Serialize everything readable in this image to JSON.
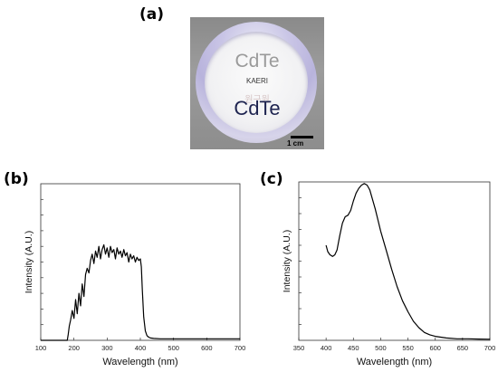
{
  "panels": {
    "a": {
      "label": "(a)",
      "photo_texts": {
        "top_text": "CdTe",
        "middle_text": "KAERI",
        "ghost_text": "원구원",
        "bottom_text": "CdTe"
      },
      "scale_bar_label": "1 cm"
    },
    "b": {
      "label": "(b)"
    },
    "c": {
      "label": "(c)"
    }
  },
  "chart_data": [
    {
      "type": "line",
      "xlabel": "Wavelength   (nm)",
      "ylabel": "Intensity (A.U.)",
      "xlim": [
        100,
        700
      ],
      "x_ticks": [
        100,
        200,
        300,
        400,
        500,
        600,
        700
      ],
      "y_tick_labels": "none",
      "ylim": [
        0,
        1
      ],
      "series": [
        {
          "x": [
            100,
            180,
            183,
            186,
            190,
            195,
            200,
            205,
            210,
            215,
            220,
            225,
            230,
            235,
            240,
            245,
            250,
            255,
            260,
            265,
            270,
            275,
            280,
            285,
            290,
            295,
            300,
            305,
            310,
            315,
            320,
            325,
            330,
            335,
            340,
            345,
            350,
            355,
            360,
            365,
            370,
            375,
            380,
            385,
            390,
            395,
            400,
            403,
            406,
            410,
            415,
            420,
            425,
            430,
            440,
            460,
            500,
            550,
            600,
            650,
            700
          ],
          "y": [
            0.0,
            0.0,
            0.04,
            0.09,
            0.13,
            0.19,
            0.14,
            0.26,
            0.17,
            0.3,
            0.22,
            0.36,
            0.28,
            0.42,
            0.46,
            0.43,
            0.51,
            0.55,
            0.49,
            0.57,
            0.53,
            0.6,
            0.52,
            0.58,
            0.61,
            0.55,
            0.59,
            0.53,
            0.6,
            0.56,
            0.58,
            0.52,
            0.59,
            0.55,
            0.57,
            0.53,
            0.58,
            0.54,
            0.56,
            0.5,
            0.55,
            0.52,
            0.54,
            0.5,
            0.53,
            0.51,
            0.52,
            0.47,
            0.32,
            0.15,
            0.06,
            0.03,
            0.02,
            0.015,
            0.012,
            0.01,
            0.01,
            0.01,
            0.01,
            0.01,
            0.01
          ]
        }
      ]
    },
    {
      "type": "line",
      "xlabel": "Wavelength (nm)",
      "ylabel": "Intensity (A.U.)",
      "xlim": [
        350,
        700
      ],
      "x_ticks": [
        350,
        400,
        450,
        500,
        550,
        600,
        650,
        700
      ],
      "y_tick_labels": "none",
      "ylim": [
        0,
        1
      ],
      "series": [
        {
          "x": [
            400,
            403,
            407,
            412,
            416,
            420,
            425,
            430,
            435,
            440,
            445,
            450,
            455,
            460,
            465,
            470,
            475,
            480,
            485,
            490,
            495,
            500,
            510,
            520,
            530,
            540,
            550,
            560,
            570,
            580,
            590,
            600,
            620,
            640,
            660,
            680,
            700
          ],
          "y": [
            0.6,
            0.56,
            0.54,
            0.53,
            0.54,
            0.57,
            0.66,
            0.74,
            0.78,
            0.79,
            0.82,
            0.88,
            0.93,
            0.96,
            0.98,
            0.99,
            0.98,
            0.95,
            0.89,
            0.83,
            0.76,
            0.69,
            0.57,
            0.45,
            0.34,
            0.25,
            0.18,
            0.12,
            0.08,
            0.05,
            0.035,
            0.025,
            0.015,
            0.01,
            0.01,
            0.008,
            0.007
          ]
        }
      ]
    }
  ]
}
